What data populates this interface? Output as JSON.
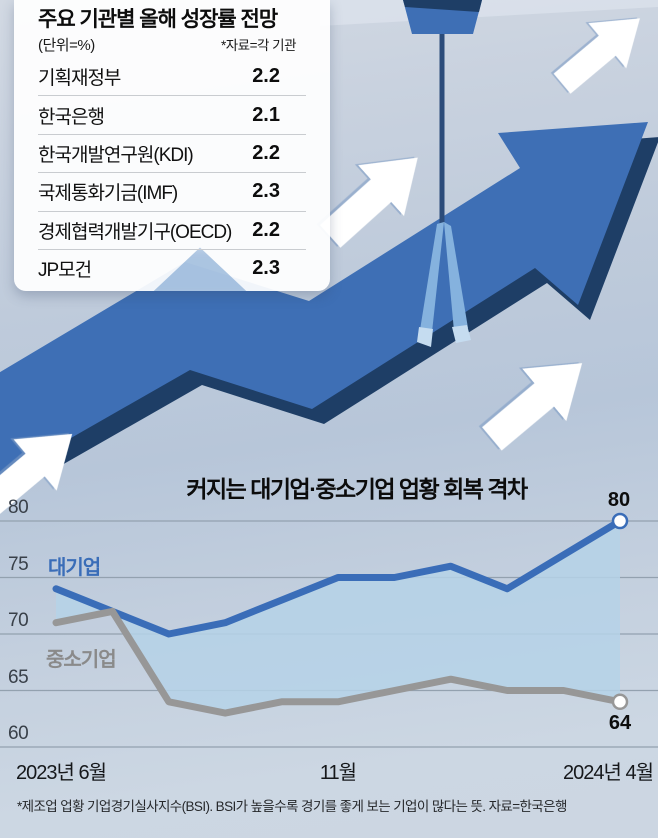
{
  "table": {
    "title": "주요 기관별 올해 성장률 전망",
    "unit_label": "(단위=%)",
    "source_label": "*자료=각 기관",
    "rows": [
      {
        "org": "기획재정부",
        "value": "2.2"
      },
      {
        "org": "한국은행",
        "value": "2.1"
      },
      {
        "org": "한국개발연구원(KDI)",
        "value": "2.2"
      },
      {
        "org": "국제통화기금(IMF)",
        "value": "2.3"
      },
      {
        "org": "경제협력개발기구(OECD)",
        "value": "2.2"
      },
      {
        "org": "JP모건",
        "value": "2.3"
      }
    ]
  },
  "chart_data": {
    "type": "line",
    "title": "커지는 대기업·중소기업 업황 회복 격차",
    "categories": [
      "2023-06",
      "2023-07",
      "2023-08",
      "2023-09",
      "2023-10",
      "2023-11",
      "2023-12",
      "2024-01",
      "2024-02",
      "2024-03",
      "2024-04"
    ],
    "x_axis_labels": [
      "2023년 6월",
      "11월",
      "2024년 4월"
    ],
    "yticks": [
      80,
      75,
      70,
      65,
      60
    ],
    "ylim": [
      58,
      82
    ],
    "grid": true,
    "legend_position": "inline-left",
    "area_fill": "#b5d2e8",
    "series": [
      {
        "name": "대기업",
        "color": "#3a6db8",
        "values": [
          74,
          72,
          70,
          71,
          73,
          75,
          75,
          76,
          74,
          77,
          80
        ]
      },
      {
        "name": "중소기업",
        "color": "#979797",
        "values": [
          71,
          72,
          64,
          63,
          64,
          64,
          65,
          66,
          65,
          65,
          64
        ]
      }
    ],
    "end_labels": [
      "80",
      "64"
    ]
  },
  "footnote": "*제조업 업황 기업경기실사지수(BSI). BSI가 높을수록 경기를 좋게 보는 기업이 많다는 뜻. 자료=한국은행",
  "illustration": {
    "arrow_blue": "#3e6fb5",
    "navy_shadow": "#1e3e66",
    "cable_blue": "#2c4c7a",
    "sling_blue": "#85b2de",
    "sling_light": "#c5dcf0",
    "white_arrow": "#ffffff",
    "top_band": "#dfe5ee",
    "white_arrow_count": 4
  }
}
